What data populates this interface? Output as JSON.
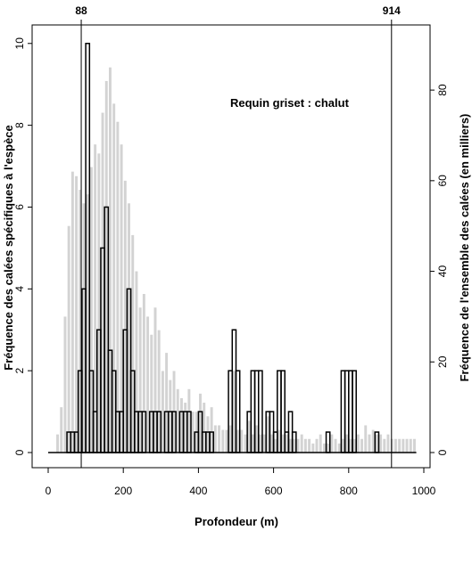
{
  "chart_data": {
    "type": "bar",
    "annotation": "Requin griset : chalut",
    "xlabel": "Profondeur (m)",
    "ylabel_left": "Fréquence des calées spécifiques à l'espèce",
    "ylabel_right": "Fréquence de l'ensemble des calées (en milliers)",
    "xlim": [
      0,
      1000
    ],
    "ylim_left": [
      0,
      10.3
    ],
    "ylim_right": [
      0,
      93
    ],
    "x_ticks": [
      "0",
      "200",
      "400",
      "600",
      "800",
      "1000"
    ],
    "y_left_ticks": [
      "0",
      "2",
      "4",
      "6",
      "8",
      "10"
    ],
    "y_right_ticks": [
      "0",
      "20",
      "40",
      "60",
      "80"
    ],
    "reference_lines": [
      {
        "x": 88,
        "label": "88"
      },
      {
        "x": 914,
        "label": "914"
      }
    ],
    "grid": false,
    "series": [
      {
        "axis": "right",
        "color": "#d3d3d3",
        "bin_width": 10,
        "x": [
          25,
          35,
          45,
          55,
          65,
          75,
          85,
          95,
          105,
          115,
          125,
          135,
          145,
          155,
          165,
          175,
          185,
          195,
          205,
          215,
          225,
          235,
          245,
          255,
          265,
          275,
          285,
          295,
          305,
          315,
          325,
          335,
          345,
          355,
          365,
          375,
          385,
          395,
          405,
          415,
          425,
          435,
          445,
          455,
          465,
          475,
          485,
          495,
          505,
          515,
          525,
          535,
          545,
          555,
          565,
          575,
          585,
          595,
          605,
          615,
          625,
          635,
          645,
          655,
          665,
          675,
          685,
          695,
          705,
          715,
          725,
          735,
          745,
          755,
          765,
          775,
          785,
          795,
          805,
          815,
          825,
          835,
          845,
          855,
          865,
          875,
          885,
          895,
          905,
          915,
          925,
          935,
          945,
          955,
          965,
          975
        ],
        "values": [
          4,
          10,
          30,
          50,
          62,
          61,
          58,
          55,
          57,
          63,
          68,
          66,
          75,
          82,
          85,
          77,
          73,
          68,
          60,
          55,
          48,
          40,
          32,
          35,
          30,
          26,
          32,
          27,
          18,
          22,
          16,
          18,
          14,
          12,
          11,
          14,
          9,
          9,
          13,
          11,
          8,
          10,
          6,
          6,
          5,
          5,
          6,
          18,
          5,
          5,
          4,
          7,
          4,
          6,
          4,
          4,
          8,
          4,
          3,
          5,
          4,
          4,
          3,
          3,
          3,
          4,
          3,
          3,
          2,
          3,
          4,
          2,
          2,
          4,
          3,
          2,
          3,
          4,
          3,
          3,
          4,
          3,
          6,
          4,
          5,
          4,
          4,
          3,
          4,
          3,
          3,
          3,
          3,
          3,
          3,
          3
        ]
      },
      {
        "axis": "left",
        "color": "#000000",
        "bin_width": 10,
        "x": [
          55,
          65,
          75,
          85,
          95,
          105,
          115,
          125,
          135,
          145,
          155,
          165,
          175,
          185,
          195,
          205,
          215,
          225,
          235,
          245,
          255,
          265,
          275,
          285,
          295,
          305,
          315,
          325,
          335,
          345,
          355,
          365,
          375,
          385,
          395,
          405,
          415,
          425,
          435,
          445,
          455,
          465,
          475,
          485,
          495,
          505,
          515,
          525,
          535,
          545,
          555,
          565,
          575,
          585,
          595,
          605,
          615,
          625,
          635,
          645,
          655,
          665,
          675,
          685,
          695,
          705,
          715,
          725,
          735,
          745,
          755,
          765,
          775,
          785,
          795,
          805,
          815,
          825,
          835,
          845,
          855,
          865,
          875,
          885,
          895,
          905,
          915,
          925,
          935,
          945,
          955,
          965,
          975
        ],
        "values": [
          0.5,
          0.5,
          0.5,
          2,
          4,
          10,
          2,
          1,
          3,
          5,
          6,
          2.5,
          2,
          1,
          1,
          3,
          4,
          2,
          1,
          1,
          1,
          0,
          1,
          1,
          1,
          0,
          1,
          1,
          1,
          0,
          1,
          1,
          1,
          0,
          0.5,
          1,
          0.5,
          0.5,
          0.5,
          0,
          0,
          0,
          0,
          2,
          3,
          2,
          0,
          0,
          1,
          2,
          2,
          2,
          0,
          1,
          1,
          0.5,
          2,
          2,
          0.5,
          1,
          0.5,
          0,
          0,
          0,
          0,
          0,
          0,
          0,
          0,
          0.5,
          0,
          0,
          0,
          2,
          2,
          2,
          2,
          0,
          0,
          0,
          0,
          0,
          0.5,
          0,
          0,
          0,
          0,
          0,
          0,
          0,
          0,
          0,
          0
        ]
      }
    ]
  }
}
